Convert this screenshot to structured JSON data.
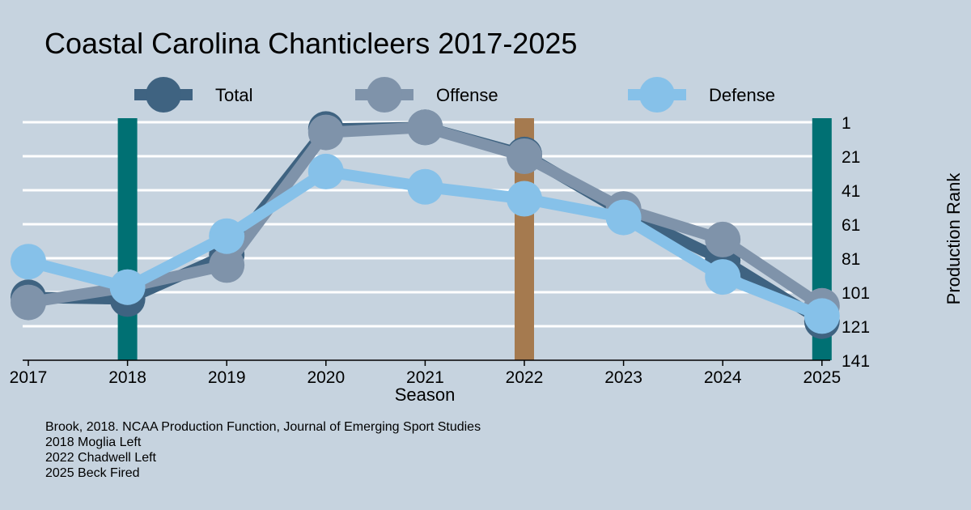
{
  "chart_data": {
    "type": "line",
    "title": "Coastal Carolina Chanticleers 2017-2025",
    "xlabel": "Season",
    "ylabel": "Production Rank",
    "x": [
      2017,
      2018,
      2019,
      2020,
      2021,
      2022,
      2023,
      2024,
      2025
    ],
    "x_tick_labels": [
      "2017",
      "2018",
      "2019",
      "2020",
      "2021",
      "2022",
      "2023",
      "2024",
      "2025"
    ],
    "y_tick_labels": [
      "1",
      "21",
      "41",
      "61",
      "81",
      "101",
      "121",
      "141"
    ],
    "y_ticks": [
      1,
      21,
      41,
      61,
      81,
      101,
      121,
      141
    ],
    "ylim": [
      1,
      141
    ],
    "y_reversed": true,
    "legend_position": "top",
    "series": [
      {
        "name": "Total",
        "color": "#3f6381",
        "values": [
          104,
          105,
          79,
          5,
          4,
          20,
          54,
          82,
          118
        ]
      },
      {
        "name": "Offense",
        "color": "#7f93aa",
        "values": [
          107,
          98,
          85,
          7,
          4,
          21,
          52,
          70,
          109
        ]
      },
      {
        "name": "Defense",
        "color": "#86c1e9",
        "values": [
          83,
          98,
          68,
          30,
          39,
          46,
          57,
          92,
          115
        ]
      }
    ],
    "vertical_markers": [
      {
        "x": 2018,
        "color": "#007073"
      },
      {
        "x": 2022,
        "color": "#a57a4f"
      },
      {
        "x": 2025,
        "color": "#007073"
      }
    ],
    "grid": true
  },
  "notes": [
    "Brook, 2018. NCAA Production Function, Journal of Emerging Sport Studies",
    "2018 Moglia Left",
    "2022 Chadwell Left",
    "2025 Beck Fired"
  ]
}
